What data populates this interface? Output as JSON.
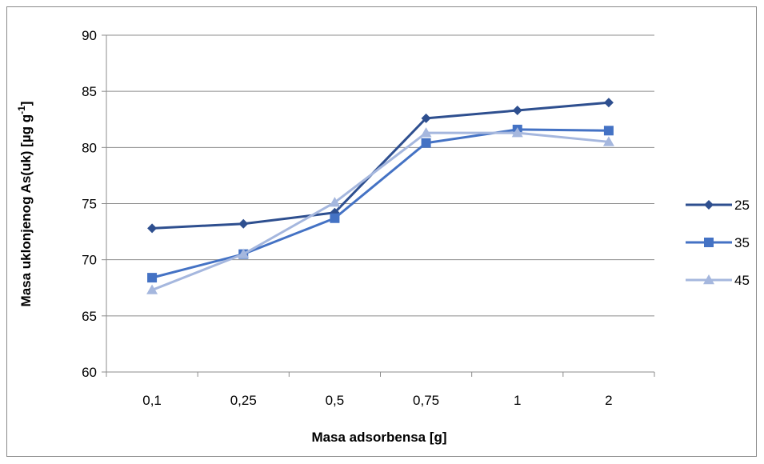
{
  "chart_data": {
    "type": "line",
    "categories": [
      "0,1",
      "0,25",
      "0,5",
      "0,75",
      "1",
      "2"
    ],
    "series": [
      {
        "name": "25",
        "values": [
          72.8,
          73.2,
          74.2,
          82.6,
          83.3,
          84.0
        ],
        "color": "#2e4f8f",
        "marker": "diamond"
      },
      {
        "name": "35",
        "values": [
          68.4,
          70.5,
          73.7,
          80.4,
          81.6,
          81.5
        ],
        "color": "#4472c4",
        "marker": "square"
      },
      {
        "name": "45",
        "values": [
          67.3,
          70.5,
          75.1,
          81.3,
          81.3,
          80.5
        ],
        "color": "#a5b7de",
        "marker": "triangle"
      }
    ],
    "xlabel": "Masa adsorbensa [g]",
    "ylabel_main": "Masa uklonjenog As(uk) [µg g",
    "ylabel_sup": "-1",
    "ylabel_end": "]",
    "ylim": [
      60,
      90
    ],
    "yticks": [
      "60",
      "65",
      "70",
      "75",
      "80",
      "85",
      "90"
    ],
    "grid": "horizontal",
    "legend_position": "right"
  }
}
